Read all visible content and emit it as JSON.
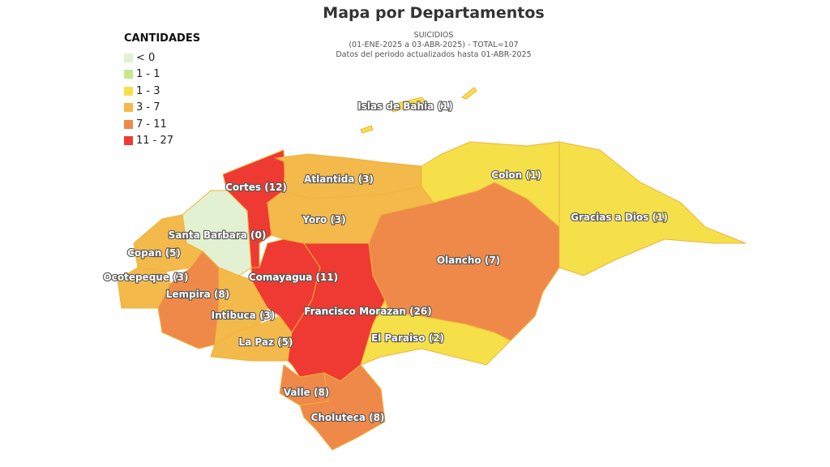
{
  "title": "Mapa por Departamentos",
  "subtitle": {
    "line1": "SUICIDIOS",
    "line2": "(01-ENE-2025 a 03-ABR-2025) - TOTAL=107",
    "line3": "Datos del periodo actualizados hasta 01-ABR-2025"
  },
  "legend": {
    "title": "CANTIDADES",
    "items": [
      {
        "label": "< 0",
        "color": "#e2f1d2"
      },
      {
        "label": "1 - 1",
        "color": "#c4e88c"
      },
      {
        "label": "1 - 3",
        "color": "#f5e04a"
      },
      {
        "label": "3 - 7",
        "color": "#f3b94b"
      },
      {
        "label": "7 - 11",
        "color": "#ef894a"
      },
      {
        "label": "11 - 27",
        "color": "#ee3a32"
      }
    ]
  },
  "departments": [
    {
      "name": "Cortes",
      "value": 12,
      "label": "Cortes (12)",
      "color": "#ee3a32"
    },
    {
      "name": "Santa Barbara",
      "value": 0,
      "label": "Santa Barbara (0)",
      "color": "#e2f1d2"
    },
    {
      "name": "Copan",
      "value": 5,
      "label": "Copan (5)",
      "color": "#f3b94b"
    },
    {
      "name": "Ocotepeque",
      "value": 3,
      "label": "Ocotepeque (3)",
      "color": "#f3b94b"
    },
    {
      "name": "Lempira",
      "value": 8,
      "label": "Lempira (8)",
      "color": "#ef894a"
    },
    {
      "name": "Intibuca",
      "value": 3,
      "label": "Intibuca (3)",
      "color": "#f3b94b"
    },
    {
      "name": "La Paz",
      "value": 5,
      "label": "La Paz (5)",
      "color": "#f3b94b"
    },
    {
      "name": "Comayagua",
      "value": 11,
      "label": "Comayagua (11)",
      "color": "#ee3a32"
    },
    {
      "name": "Atlantida",
      "value": 3,
      "label": "Atlantida (3)",
      "color": "#f3b94b"
    },
    {
      "name": "Yoro",
      "value": 3,
      "label": "Yoro (3)",
      "color": "#f3b94b"
    },
    {
      "name": "Francisco Morazan",
      "value": 26,
      "label": "Francisco Morazan (26)",
      "color": "#ee3a32"
    },
    {
      "name": "Olancho",
      "value": 7,
      "label": "Olancho (7)",
      "color": "#ef894a"
    },
    {
      "name": "Colon",
      "value": 1,
      "label": "Colon (1)",
      "color": "#f5e04a"
    },
    {
      "name": "Gracias a Dios",
      "value": 1,
      "label": "Gracias a Dios (1)",
      "color": "#f5e04a"
    },
    {
      "name": "El Paraiso",
      "value": 2,
      "label": "El Paraiso (2)",
      "color": "#f5e04a"
    },
    {
      "name": "Valle",
      "value": 8,
      "label": "Valle (8)",
      "color": "#ef894a"
    },
    {
      "name": "Choluteca",
      "value": 8,
      "label": "Choluteca (8)",
      "color": "#ef894a"
    },
    {
      "name": "Islas de Bahia",
      "value": 1,
      "label": "Islas de Bahia (1)",
      "color": "#f5e04a"
    }
  ]
}
